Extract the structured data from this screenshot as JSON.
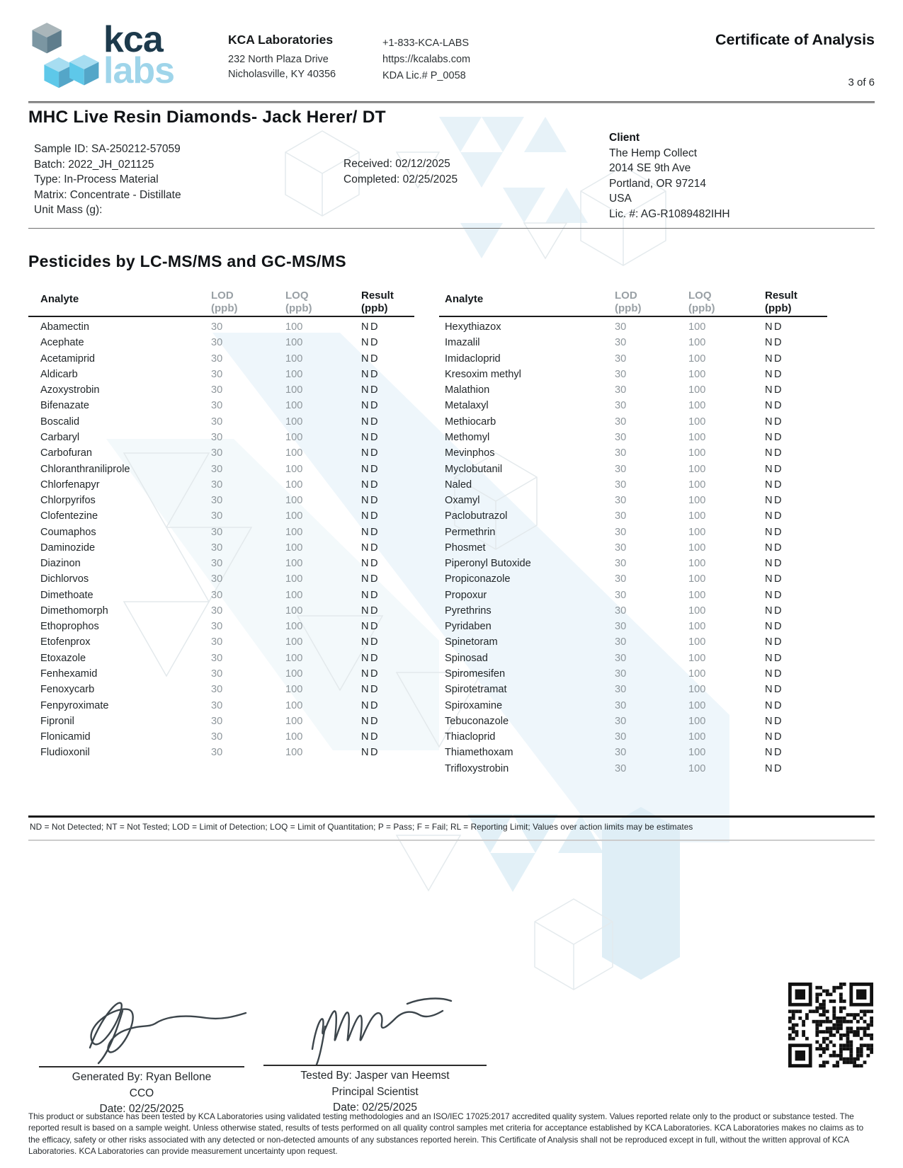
{
  "header": {
    "logo": {
      "kca": "kca",
      "labs": "labs"
    },
    "company": {
      "name": "KCA Laboratories",
      "address1": "232 North Plaza Drive",
      "address2": "Nicholasville, KY 40356"
    },
    "contact": {
      "phone": "+1-833-KCA-LABS",
      "website": "https://kcalabs.com",
      "license": "KDA Lic.# P_0058"
    },
    "doc_title": "Certificate of Analysis",
    "page": "3 of 6"
  },
  "sample": {
    "title": "MHC Live Resin Diamonds- Jack Herer/ DT",
    "lines": [
      "Sample ID: SA-250212-57059",
      "Batch: 2022_JH_021125",
      "Type: In-Process Material",
      "Matrix: Concentrate - Distillate",
      "Unit Mass (g):"
    ],
    "received": "Received: 02/12/2025",
    "completed": "Completed: 02/25/2025"
  },
  "client": {
    "heading": "Client",
    "lines": [
      "The Hemp Collect",
      "2014 SE 9th Ave",
      "Portland, OR 97214",
      "USA",
      "Lic. #: AG-R1089482IHH"
    ]
  },
  "section": {
    "title": "Pesticides by LC-MS/MS and GC-MS/MS",
    "columns": {
      "analyte": "Analyte",
      "lod": "LOD",
      "loq": "LOQ",
      "result": "Result",
      "unit": "(ppb)"
    },
    "left_rows": [
      [
        "Abamectin",
        "30",
        "100",
        "ND"
      ],
      [
        "Acephate",
        "30",
        "100",
        "ND"
      ],
      [
        "Acetamiprid",
        "30",
        "100",
        "ND"
      ],
      [
        "Aldicarb",
        "30",
        "100",
        "ND"
      ],
      [
        "Azoxystrobin",
        "30",
        "100",
        "ND"
      ],
      [
        "Bifenazate",
        "30",
        "100",
        "ND"
      ],
      [
        "Boscalid",
        "30",
        "100",
        "ND"
      ],
      [
        "Carbaryl",
        "30",
        "100",
        "ND"
      ],
      [
        "Carbofuran",
        "30",
        "100",
        "ND"
      ],
      [
        "Chloranthraniliprole",
        "30",
        "100",
        "ND"
      ],
      [
        "Chlorfenapyr",
        "30",
        "100",
        "ND"
      ],
      [
        "Chlorpyrifos",
        "30",
        "100",
        "ND"
      ],
      [
        "Clofentezine",
        "30",
        "100",
        "ND"
      ],
      [
        "Coumaphos",
        "30",
        "100",
        "ND"
      ],
      [
        "Daminozide",
        "30",
        "100",
        "ND"
      ],
      [
        "Diazinon",
        "30",
        "100",
        "ND"
      ],
      [
        "Dichlorvos",
        "30",
        "100",
        "ND"
      ],
      [
        "Dimethoate",
        "30",
        "100",
        "ND"
      ],
      [
        "Dimethomorph",
        "30",
        "100",
        "ND"
      ],
      [
        "Ethoprophos",
        "30",
        "100",
        "ND"
      ],
      [
        "Etofenprox",
        "30",
        "100",
        "ND"
      ],
      [
        "Etoxazole",
        "30",
        "100",
        "ND"
      ],
      [
        "Fenhexamid",
        "30",
        "100",
        "ND"
      ],
      [
        "Fenoxycarb",
        "30",
        "100",
        "ND"
      ],
      [
        "Fenpyroximate",
        "30",
        "100",
        "ND"
      ],
      [
        "Fipronil",
        "30",
        "100",
        "ND"
      ],
      [
        "Flonicamid",
        "30",
        "100",
        "ND"
      ],
      [
        "Fludioxonil",
        "30",
        "100",
        "ND"
      ]
    ],
    "right_rows": [
      [
        "Hexythiazox",
        "30",
        "100",
        "ND"
      ],
      [
        "Imazalil",
        "30",
        "100",
        "ND"
      ],
      [
        "Imidacloprid",
        "30",
        "100",
        "ND"
      ],
      [
        "Kresoxim methyl",
        "30",
        "100",
        "ND"
      ],
      [
        "Malathion",
        "30",
        "100",
        "ND"
      ],
      [
        "Metalaxyl",
        "30",
        "100",
        "ND"
      ],
      [
        "Methiocarb",
        "30",
        "100",
        "ND"
      ],
      [
        "Methomyl",
        "30",
        "100",
        "ND"
      ],
      [
        "Mevinphos",
        "30",
        "100",
        "ND"
      ],
      [
        "Myclobutanil",
        "30",
        "100",
        "ND"
      ],
      [
        "Naled",
        "30",
        "100",
        "ND"
      ],
      [
        "Oxamyl",
        "30",
        "100",
        "ND"
      ],
      [
        "Paclobutrazol",
        "30",
        "100",
        "ND"
      ],
      [
        "Permethrin",
        "30",
        "100",
        "ND"
      ],
      [
        "Phosmet",
        "30",
        "100",
        "ND"
      ],
      [
        "Piperonyl Butoxide",
        "30",
        "100",
        "ND"
      ],
      [
        "Propiconazole",
        "30",
        "100",
        "ND"
      ],
      [
        "Propoxur",
        "30",
        "100",
        "ND"
      ],
      [
        "Pyrethrins",
        "30",
        "100",
        "ND"
      ],
      [
        "Pyridaben",
        "30",
        "100",
        "ND"
      ],
      [
        "Spinetoram",
        "30",
        "100",
        "ND"
      ],
      [
        "Spinosad",
        "30",
        "100",
        "ND"
      ],
      [
        "Spiromesifen",
        "30",
        "100",
        "ND"
      ],
      [
        "Spirotetramat",
        "30",
        "100",
        "ND"
      ],
      [
        "Spiroxamine",
        "30",
        "100",
        "ND"
      ],
      [
        "Tebuconazole",
        "30",
        "100",
        "ND"
      ],
      [
        "Thiacloprid",
        "30",
        "100",
        "ND"
      ],
      [
        "Thiamethoxam",
        "30",
        "100",
        "ND"
      ],
      [
        "Trifloxystrobin",
        "30",
        "100",
        "ND"
      ]
    ]
  },
  "footnote": "ND = Not Detected; NT = Not Tested; LOD = Limit of Detection; LOQ = Limit of Quantitation; P = Pass; F = Fail; RL = Reporting Limit; Values over action limits may be estimates",
  "signatures": {
    "generated": {
      "by": "Generated By: Ryan Bellone",
      "title": "CCO",
      "date": "Date: 02/25/2025"
    },
    "tested": {
      "by": "Tested By: Jasper van Heemst",
      "title": "Principal Scientist",
      "date": "Date: 02/25/2025"
    }
  },
  "disclaimer": "This product or substance has been tested by KCA Laboratories using validated testing methodologies and an ISO/IEC 17025:2017 accredited quality system. Values reported relate only to the product or substance tested. The reported result is based on a sample weight. Unless otherwise stated, results of tests performed on all quality control samples met criteria for acceptance established by KCA Laboratories. KCA Laboratories makes no claims as to the efficacy, safety or other risks associated with any detected or non-detected amounts of any substances reported herein. This Certificate of Analysis shall not be reproduced except in full, without the written approval of KCA Laboratories. KCA Laboratories can provide measurement uncertainty upon request.",
  "colors": {
    "navy": "#1d3a4c",
    "light_blue": "#9fd5ea",
    "cube_blue": "#5ec8e9",
    "gray_value": "#8f979c"
  }
}
